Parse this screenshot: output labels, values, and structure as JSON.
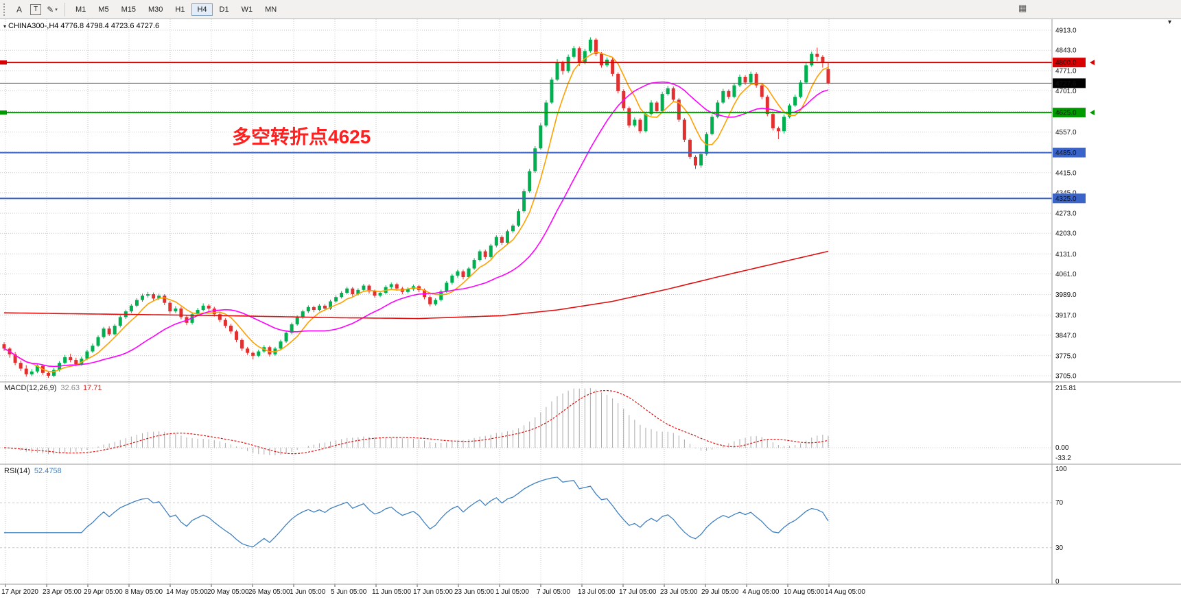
{
  "toolbar": {
    "tools": [
      {
        "name": "label-tool",
        "glyph": "A"
      },
      {
        "name": "textbox-tool",
        "glyph": "T"
      },
      {
        "name": "shapes-tool",
        "glyph": "✎",
        "caret": "▾"
      }
    ],
    "timeframes": [
      "M1",
      "M5",
      "M15",
      "M30",
      "H1",
      "H4",
      "D1",
      "W1",
      "MN"
    ],
    "active_timeframe": "H4",
    "window_icon_glyph": "▦"
  },
  "chart": {
    "symbol_header": "CHINA300-,H4 4776.8 4798.4 4723.6 4727.6",
    "dropdown_glyph": "▾",
    "shift_marker_glyph": "▾"
  },
  "chart_data": {
    "type": "candlestick",
    "title": "CHINA300- H4",
    "ylim": [
      3705,
      4913
    ],
    "colors": {
      "up": "#00B050",
      "down": "#E03030",
      "ma_fast": "#FFA000",
      "ma_medium": "#FF00FF",
      "ma_slow": "#E01010",
      "grid": "#C9C9C9"
    },
    "y_ticks": [
      {
        "v": 4913.0,
        "label": "4913.0"
      },
      {
        "v": 4843.0,
        "label": "4843.0"
      },
      {
        "v": 4771.0,
        "label": "4771.0"
      },
      {
        "v": 4701.0,
        "label": "4701.0"
      },
      {
        "v": 4629.0,
        "label": "4629.0",
        "hidden": true
      },
      {
        "v": 4557.0,
        "label": "4557.0"
      },
      {
        "v": 4487.0,
        "label": "4487.0",
        "hidden": true
      },
      {
        "v": 4415.0,
        "label": "4415.0"
      },
      {
        "v": 4345.0,
        "label": "4345.0"
      },
      {
        "v": 4273.0,
        "label": "4273.0"
      },
      {
        "v": 4203.0,
        "label": "4203.0"
      },
      {
        "v": 4131.0,
        "label": "4131.0"
      },
      {
        "v": 4061.0,
        "label": "4061.0"
      },
      {
        "v": 3989.0,
        "label": "3989.0"
      },
      {
        "v": 3917.0,
        "label": "3917.0"
      },
      {
        "v": 3847.0,
        "label": "3847.0"
      },
      {
        "v": 3775.0,
        "label": "3775.0"
      },
      {
        "v": 3705.0,
        "label": "3705.0"
      }
    ],
    "x_labels": [
      "17 Apr 2020",
      "23 Apr 05:00",
      "29 Apr 05:00",
      "8 May 05:00",
      "14 May 05:00",
      "20 May 05:00",
      "26 May 05:00",
      "1 Jun 05:00",
      "5 Jun 05:00",
      "11 Jun 05:00",
      "17 Jun 05:00",
      "23 Jun 05:00",
      "1 Jul 05:00",
      "7 Jul 05:00",
      "13 Jul 05:00",
      "17 Jul 05:00",
      "23 Jul 05:00",
      "29 Jul 05:00",
      "4 Aug 05:00",
      "10 Aug 05:00",
      "14 Aug 05:00"
    ],
    "hlines": [
      {
        "price": 4800.0,
        "label": "4800.0",
        "color": "#D80000",
        "width": 2,
        "edge_marker": true
      },
      {
        "price": 4625.0,
        "label": "4625.0",
        "color": "#009900",
        "width": 2,
        "edge_marker": true
      },
      {
        "price": 4485.0,
        "label": "4485.0",
        "color": "#3A64C8",
        "width": 2
      },
      {
        "price": 4325.0,
        "label": "4325.0",
        "color": "#3A64C8",
        "width": 2
      }
    ],
    "current_price": {
      "value": 4727.6,
      "label": "4727.6",
      "color": "#000000"
    },
    "annotation": {
      "text": "多空转折点4625",
      "color": "#FF1F1F"
    },
    "ma_fast_period": 6,
    "ma_medium_period": 21,
    "ma_slow_points": [
      [
        0,
        3925
      ],
      [
        20,
        3920
      ],
      [
        40,
        3915
      ],
      [
        60,
        3908
      ],
      [
        75,
        3905
      ],
      [
        90,
        3915
      ],
      [
        100,
        3935
      ],
      [
        110,
        3965
      ],
      [
        120,
        4008
      ],
      [
        130,
        4055
      ],
      [
        140,
        4100
      ],
      [
        149,
        4140
      ]
    ],
    "ohlc": [
      [
        3815,
        3822,
        3792,
        3800
      ],
      [
        3800,
        3805,
        3768,
        3780
      ],
      [
        3780,
        3788,
        3742,
        3750
      ],
      [
        3750,
        3758,
        3722,
        3730
      ],
      [
        3730,
        3742,
        3702,
        3710
      ],
      [
        3710,
        3728,
        3704,
        3720
      ],
      [
        3720,
        3748,
        3714,
        3740
      ],
      [
        3740,
        3745,
        3708,
        3715
      ],
      [
        3715,
        3722,
        3698,
        3705
      ],
      [
        3705,
        3732,
        3700,
        3725
      ],
      [
        3725,
        3756,
        3720,
        3750
      ],
      [
        3750,
        3778,
        3745,
        3770
      ],
      [
        3770,
        3782,
        3752,
        3760
      ],
      [
        3760,
        3768,
        3738,
        3745
      ],
      [
        3745,
        3772,
        3740,
        3765
      ],
      [
        3765,
        3796,
        3760,
        3790
      ],
      [
        3790,
        3818,
        3785,
        3810
      ],
      [
        3810,
        3846,
        3806,
        3840
      ],
      [
        3840,
        3876,
        3835,
        3870
      ],
      [
        3870,
        3878,
        3844,
        3850
      ],
      [
        3850,
        3886,
        3846,
        3880
      ],
      [
        3880,
        3916,
        3874,
        3910
      ],
      [
        3910,
        3936,
        3904,
        3930
      ],
      [
        3930,
        3956,
        3924,
        3950
      ],
      [
        3950,
        3976,
        3944,
        3970
      ],
      [
        3970,
        3992,
        3964,
        3985
      ],
      [
        3985,
        3998,
        3978,
        3990
      ],
      [
        3990,
        3996,
        3968,
        3975
      ],
      [
        3975,
        3992,
        3970,
        3985
      ],
      [
        3985,
        3990,
        3952,
        3960
      ],
      [
        3960,
        3966,
        3922,
        3930
      ],
      [
        3930,
        3948,
        3924,
        3940
      ],
      [
        3940,
        3946,
        3902,
        3910
      ],
      [
        3910,
        3916,
        3882,
        3890
      ],
      [
        3890,
        3926,
        3884,
        3920
      ],
      [
        3920,
        3942,
        3914,
        3935
      ],
      [
        3935,
        3958,
        3930,
        3950
      ],
      [
        3950,
        3956,
        3932,
        3940
      ],
      [
        3940,
        3946,
        3912,
        3920
      ],
      [
        3920,
        3926,
        3892,
        3900
      ],
      [
        3900,
        3906,
        3872,
        3880
      ],
      [
        3880,
        3886,
        3852,
        3860
      ],
      [
        3860,
        3866,
        3822,
        3830
      ],
      [
        3830,
        3836,
        3792,
        3800
      ],
      [
        3800,
        3806,
        3778,
        3785
      ],
      [
        3785,
        3790,
        3762,
        3775
      ],
      [
        3775,
        3796,
        3770,
        3790
      ],
      [
        3790,
        3812,
        3785,
        3805
      ],
      [
        3805,
        3810,
        3772,
        3780
      ],
      [
        3780,
        3806,
        3775,
        3800
      ],
      [
        3800,
        3831,
        3795,
        3825
      ],
      [
        3825,
        3861,
        3820,
        3855
      ],
      [
        3855,
        3891,
        3850,
        3885
      ],
      [
        3885,
        3916,
        3880,
        3910
      ],
      [
        3910,
        3936,
        3904,
        3930
      ],
      [
        3930,
        3951,
        3924,
        3945
      ],
      [
        3945,
        3950,
        3927,
        3935
      ],
      [
        3935,
        3956,
        3930,
        3950
      ],
      [
        3950,
        3956,
        3932,
        3940
      ],
      [
        3940,
        3971,
        3935,
        3965
      ],
      [
        3965,
        3986,
        3960,
        3980
      ],
      [
        3980,
        4001,
        3975,
        3995
      ],
      [
        3995,
        4016,
        3990,
        4010
      ],
      [
        4010,
        4015,
        3982,
        3990
      ],
      [
        3990,
        4011,
        3985,
        4005
      ],
      [
        4005,
        4026,
        4000,
        4020
      ],
      [
        4020,
        4025,
        3992,
        4000
      ],
      [
        4000,
        4006,
        3978,
        3985
      ],
      [
        3985,
        4001,
        3980,
        3995
      ],
      [
        3995,
        4021,
        3990,
        4015
      ],
      [
        4015,
        4031,
        4008,
        4025
      ],
      [
        4025,
        4030,
        4002,
        4010
      ],
      [
        4010,
        4016,
        3990,
        3998
      ],
      [
        3998,
        4014,
        3993,
        4008
      ],
      [
        4008,
        4024,
        4002,
        4018
      ],
      [
        4018,
        4023,
        3997,
        4005
      ],
      [
        4005,
        4010,
        3972,
        3980
      ],
      [
        3980,
        3986,
        3948,
        3955
      ],
      [
        3955,
        3976,
        3950,
        3970
      ],
      [
        3970,
        4006,
        3965,
        4000
      ],
      [
        4000,
        4036,
        3995,
        4030
      ],
      [
        4030,
        4061,
        4024,
        4055
      ],
      [
        4055,
        4076,
        4048,
        4070
      ],
      [
        4070,
        4076,
        4042,
        4050
      ],
      [
        4050,
        4086,
        4045,
        4080
      ],
      [
        4080,
        4116,
        4075,
        4110
      ],
      [
        4110,
        4146,
        4104,
        4140
      ],
      [
        4140,
        4146,
        4112,
        4120
      ],
      [
        4120,
        4166,
        4115,
        4160
      ],
      [
        4160,
        4196,
        4154,
        4190
      ],
      [
        4190,
        4196,
        4162,
        4170
      ],
      [
        4170,
        4216,
        4165,
        4210
      ],
      [
        4210,
        4236,
        4204,
        4230
      ],
      [
        4230,
        4288,
        4225,
        4280
      ],
      [
        4280,
        4358,
        4274,
        4350
      ],
      [
        4350,
        4428,
        4345,
        4420
      ],
      [
        4420,
        4508,
        4414,
        4500
      ],
      [
        4500,
        4588,
        4495,
        4580
      ],
      [
        4580,
        4668,
        4574,
        4660
      ],
      [
        4660,
        4748,
        4654,
        4740
      ],
      [
        4740,
        4812,
        4735,
        4800
      ],
      [
        4800,
        4806,
        4758,
        4770
      ],
      [
        4770,
        4828,
        4764,
        4820
      ],
      [
        4820,
        4858,
        4814,
        4850
      ],
      [
        4850,
        4856,
        4788,
        4800
      ],
      [
        4800,
        4848,
        4794,
        4840
      ],
      [
        4840,
        4888,
        4834,
        4880
      ],
      [
        4880,
        4886,
        4822,
        4830
      ],
      [
        4830,
        4836,
        4782,
        4790
      ],
      [
        4790,
        4818,
        4784,
        4810
      ],
      [
        4810,
        4816,
        4752,
        4760
      ],
      [
        4760,
        4766,
        4692,
        4700
      ],
      [
        4700,
        4706,
        4632,
        4640
      ],
      [
        4640,
        4646,
        4572,
        4580
      ],
      [
        4580,
        4608,
        4574,
        4600
      ],
      [
        4600,
        4606,
        4552,
        4560
      ],
      [
        4560,
        4628,
        4555,
        4620
      ],
      [
        4620,
        4668,
        4614,
        4660
      ],
      [
        4660,
        4666,
        4622,
        4630
      ],
      [
        4630,
        4698,
        4625,
        4690
      ],
      [
        4690,
        4718,
        4684,
        4710
      ],
      [
        4710,
        4716,
        4662,
        4670
      ],
      [
        4670,
        4676,
        4592,
        4600
      ],
      [
        4600,
        4606,
        4522,
        4530
      ],
      [
        4530,
        4536,
        4462,
        4470
      ],
      [
        4470,
        4476,
        4428,
        4440
      ],
      [
        4440,
        4488,
        4432,
        4480
      ],
      [
        4480,
        4556,
        4474,
        4550
      ],
      [
        4550,
        4618,
        4545,
        4610
      ],
      [
        4610,
        4668,
        4605,
        4660
      ],
      [
        4660,
        4708,
        4654,
        4700
      ],
      [
        4700,
        4706,
        4672,
        4680
      ],
      [
        4680,
        4728,
        4675,
        4720
      ],
      [
        4720,
        4758,
        4714,
        4750
      ],
      [
        4750,
        4756,
        4722,
        4730
      ],
      [
        4730,
        4768,
        4725,
        4760
      ],
      [
        4760,
        4766,
        4712,
        4720
      ],
      [
        4720,
        4726,
        4672,
        4680
      ],
      [
        4680,
        4686,
        4612,
        4620
      ],
      [
        4620,
        4626,
        4562,
        4570
      ],
      [
        4570,
        4576,
        4532,
        4560
      ],
      [
        4560,
        4618,
        4552,
        4610
      ],
      [
        4610,
        4656,
        4605,
        4650
      ],
      [
        4650,
        4688,
        4645,
        4680
      ],
      [
        4680,
        4738,
        4675,
        4730
      ],
      [
        4730,
        4798,
        4725,
        4790
      ],
      [
        4790,
        4838,
        4785,
        4830
      ],
      [
        4830,
        4852,
        4805,
        4820
      ],
      [
        4820,
        4826,
        4782,
        4800
      ],
      [
        4776.8,
        4798.4,
        4723.6,
        4727.6
      ]
    ],
    "macd": {
      "label": "MACD(12,26,9)",
      "fast": 12,
      "slow": 26,
      "signal": 9,
      "value_main": "32.63",
      "value_signal": "17.71",
      "axis_labels": [
        "215.81",
        "0.00",
        "-33.2"
      ],
      "histogram_color": "#AAAAAA",
      "signal_color": "#E01010"
    },
    "rsi": {
      "label": "RSI(14)",
      "period": 14,
      "value": "52.4758",
      "color": "#4080C0",
      "levels": [
        70,
        30
      ],
      "axis_labels": [
        "100",
        "70",
        "30",
        "0"
      ]
    }
  }
}
